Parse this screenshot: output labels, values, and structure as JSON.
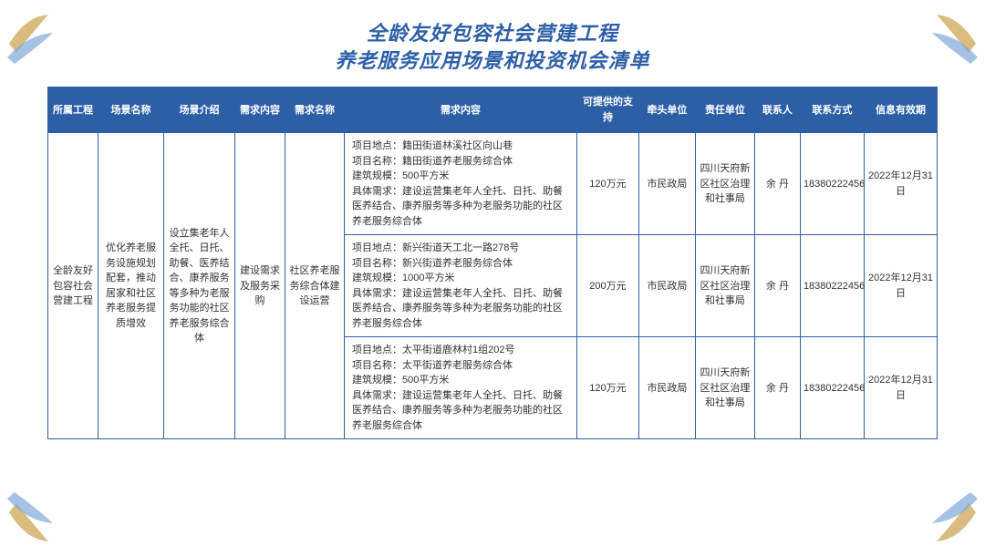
{
  "title": {
    "line1": "全龄友好包容社会营建工程",
    "line2": "养老服务应用场景和投资机会清单"
  },
  "headers": [
    "所属工程",
    "场景名称",
    "场景介绍",
    "需求内容",
    "需求名称",
    "需求内容",
    "可提供的支持",
    "牵头单位",
    "责任单位",
    "联系人",
    "联系方式",
    "信息有效期"
  ],
  "merged": {
    "project": "全龄友好包容社会营建工程",
    "scene_name": "优化养老服务设施规划配套，推动居家和社区养老服务提质增效",
    "scene_intro": "设立集老年人全托、日托、助餐、医养结合、康养服务等多种为老服务功能的社区养老服务综合体",
    "demand_type": "建设需求及服务采购",
    "demand_name": "社区养老服务综合体建设运营"
  },
  "rows": [
    {
      "content": "项目地点：籍田街道林溪社区向山巷\n项目名称：籍田街道养老服务综合体\n建筑规模：500平方米\n具体需求：建设运营集老年人全托、日托、助餐医养结合、康养服务等多种为老服务功能的社区养老服务综合体",
      "support": "120万元",
      "lead_unit": "市民政局",
      "resp_unit": "四川天府新区社区治理和社事局",
      "contact": "余 丹",
      "phone": "18380222456",
      "valid": "2022年12月31日"
    },
    {
      "content": "项目地点：新兴街道天工北一路278号\n项目名称：新兴街道养老服务综合体\n建筑规模：1000平方米\n具体需求：建设运营集老年人全托、日托、助餐医养结合、康养服务等多种为老服务功能的社区养老服务综合体",
      "support": "200万元",
      "lead_unit": "市民政局",
      "resp_unit": "四川天府新区社区治理和社事局",
      "contact": "余 丹",
      "phone": "18380222456",
      "valid": "2022年12月31日"
    },
    {
      "content": "项目地点：太平街道鹿林村1组202号\n项目名称：太平街道养老服务综合体\n建筑规模：500平方米\n具体需求：建设运营集老年人全托、日托、助餐医养结合、康养服务等多种为老服务功能的社区养老服务综合体",
      "support": "120万元",
      "lead_unit": "市民政局",
      "resp_unit": "四川天府新区社区治理和社事局",
      "contact": "余 丹",
      "phone": "18380222456",
      "valid": "2022年12月31日"
    }
  ],
  "colors": {
    "header_bg": "#2d5fa7",
    "header_fg": "#ffffff",
    "border": "#2d5fa7",
    "title": "#2d5fa7",
    "deco_gold": "#d4af6a",
    "deco_blue": "#7fa8d8"
  }
}
